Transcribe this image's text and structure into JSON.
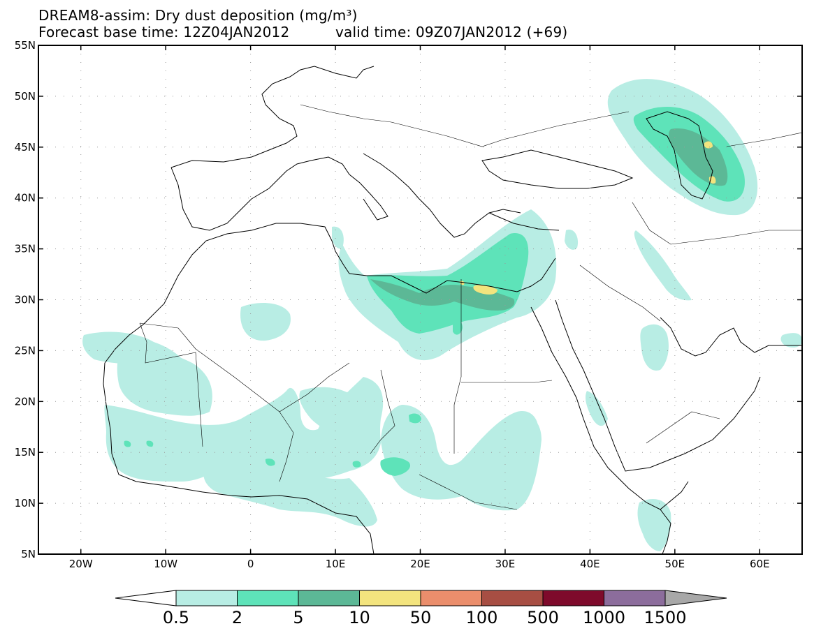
{
  "map": {
    "title": "DREAM8-assim: Dry dust deposition (mg/m³)",
    "forecast_base": "Forecast base time: 12Z04JAN2012",
    "valid_time": "valid time: 09Z07JAN2012 (+69)",
    "lat_labels": [
      "55N",
      "50N",
      "45N",
      "40N",
      "35N",
      "30N",
      "25N",
      "20N",
      "15N",
      "10N",
      "5N"
    ],
    "lon_labels": [
      "20W",
      "10W",
      "0",
      "10E",
      "20E",
      "30E",
      "40E",
      "50E",
      "60E"
    ],
    "lat_range": [
      5,
      55
    ],
    "lon_range": [
      -25,
      65
    ]
  },
  "legend": {
    "thresholds": [
      "0.5",
      "2",
      "5",
      "10",
      "50",
      "100",
      "500",
      "1000",
      "1500"
    ],
    "colors": [
      "#b8ede4",
      "#5ee3b9",
      "#5cb896",
      "#f3e47e",
      "#eb8e6c",
      "#a74e43",
      "#7e0a2b",
      "#8c6d9c",
      "#a8a8a8"
    ],
    "over_color": "#a8a8a8",
    "under_color": "#ffffff"
  },
  "chart_data": {
    "type": "heatmap",
    "title": "DREAM8-assim: Dry dust deposition (mg/m³)",
    "units": "mg/m³",
    "levels": [
      0.5,
      2,
      5,
      10,
      50,
      100,
      500,
      1000,
      1500
    ],
    "x_range": [
      -25,
      65
    ],
    "y_range": [
      5,
      55
    ]
  }
}
